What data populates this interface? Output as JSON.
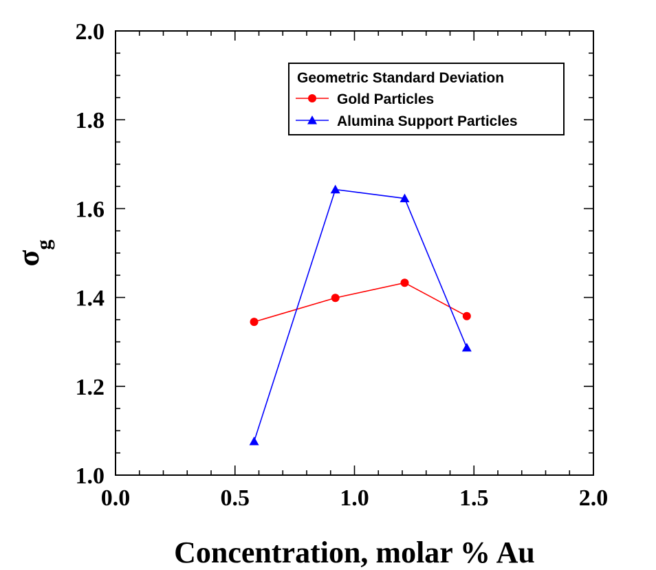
{
  "chart_data": {
    "type": "line",
    "xlabel": "Concentration, molar % Au",
    "ylabel_symbol": "σ",
    "ylabel_subscript": "g",
    "xlim": [
      0.0,
      2.0
    ],
    "ylim": [
      1.0,
      2.0
    ],
    "x_ticks": [
      "0.0",
      "0.5",
      "1.0",
      "1.5",
      "2.0"
    ],
    "y_ticks": [
      "1.0",
      "1.2",
      "1.4",
      "1.6",
      "1.8",
      "2.0"
    ],
    "grid": false,
    "legend": {
      "title": "Geometric Standard Deviation",
      "placement": "top-right"
    },
    "series": [
      {
        "name": "Gold Particles",
        "color": "#ff0000",
        "marker": "circle",
        "x": [
          0.58,
          0.92,
          1.21,
          1.47
        ],
        "y": [
          1.345,
          1.399,
          1.433,
          1.358
        ]
      },
      {
        "name": "Alumina Support Particles",
        "color": "#0000ff",
        "marker": "triangle",
        "x": [
          0.58,
          0.92,
          1.21,
          1.47
        ],
        "y": [
          1.076,
          1.643,
          1.623,
          1.287
        ]
      }
    ]
  }
}
